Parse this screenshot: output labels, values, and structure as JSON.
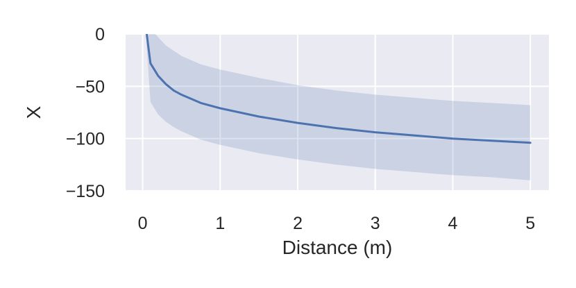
{
  "chart_data": {
    "type": "line",
    "xlabel": "Distance (m)",
    "ylabel": "X",
    "xlim": [
      -0.22,
      5.24
    ],
    "ylim": [
      -150,
      0
    ],
    "xticks": [
      0,
      1,
      2,
      3,
      4,
      5
    ],
    "yticks": [
      0,
      -50,
      -100,
      -150
    ],
    "xtick_labels": [
      "0",
      "1",
      "2",
      "3",
      "4",
      "5"
    ],
    "ytick_labels": [
      "0",
      "−50",
      "−100",
      "−150"
    ],
    "grid": true,
    "legend": "none",
    "series": [
      {
        "x": [
          0.05,
          0.1,
          0.2,
          0.3,
          0.4,
          0.5,
          0.75,
          1.0,
          1.5,
          2.0,
          2.5,
          3.0,
          3.5,
          4.0,
          4.5,
          5.0
        ],
        "y": [
          1,
          -28,
          -40,
          -48,
          -54,
          -58,
          -66,
          -71,
          -79,
          -85,
          -90,
          -94,
          -97,
          -100,
          -102,
          -104
        ],
        "lower": [
          -10,
          -65,
          -77,
          -84,
          -89,
          -93,
          -101,
          -106,
          -114,
          -120,
          -125,
          -129,
          -132,
          -135,
          -137,
          -140
        ],
        "upper": [
          30,
          5,
          -3,
          -11,
          -16,
          -21,
          -29,
          -34,
          -42,
          -49,
          -54,
          -58,
          -61,
          -64,
          -66,
          -68
        ]
      }
    ],
    "colors": {
      "line": "#4c72b0",
      "band": "#4c72b0",
      "plot_bg": "#eaeaf2",
      "grid": "#ffffff"
    }
  }
}
